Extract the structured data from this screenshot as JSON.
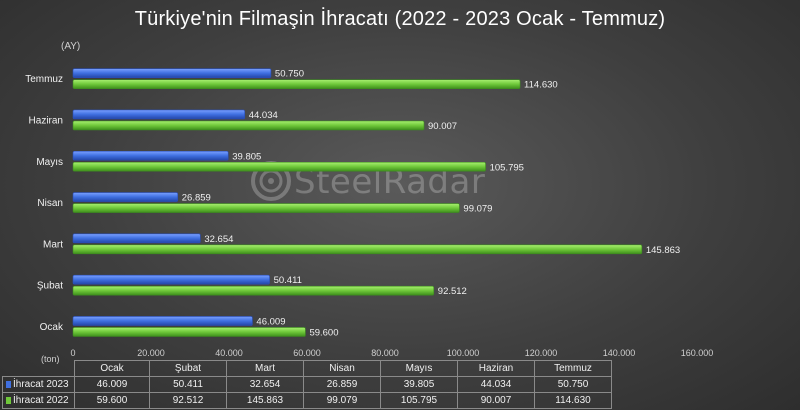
{
  "chart_data": {
    "type": "bar",
    "orientation": "horizontal",
    "title": "Türkiye'nin Filmaşin İhracatı (2022 - 2023 Ocak - Temmuz)",
    "ylabel": "(AY)",
    "xlabel": "(ton)",
    "categories": [
      "Ocak",
      "Şubat",
      "Mart",
      "Nisan",
      "Mayıs",
      "Haziran",
      "Temmuz"
    ],
    "series": [
      {
        "name": "İhracat 2023",
        "color": "#3f6fe0",
        "values": [
          46009,
          50411,
          32654,
          26859,
          39805,
          44034,
          50750
        ],
        "labels": [
          "46.009",
          "50.411",
          "32.654",
          "26.859",
          "39.805",
          "44.034",
          "50.750"
        ]
      },
      {
        "name": "İhracat 2022",
        "color": "#6fc83a",
        "values": [
          59600,
          92512,
          145863,
          99079,
          105795,
          90007,
          114630
        ],
        "labels": [
          "59.600",
          "92.512",
          "145.863",
          "99.079",
          "105.795",
          "90.007",
          "114.630"
        ]
      }
    ],
    "xlim": [
      0,
      160000
    ],
    "xticks": [
      "0",
      "20.000",
      "40.000",
      "60.000",
      "80.000",
      "100.000",
      "120.000",
      "140.000",
      "160.000"
    ],
    "grid": false,
    "legend": "data-table"
  },
  "watermark": "SteelRadar",
  "colors": {
    "series_2023": "#3f6fe0",
    "series_2022": "#6fc83a"
  }
}
